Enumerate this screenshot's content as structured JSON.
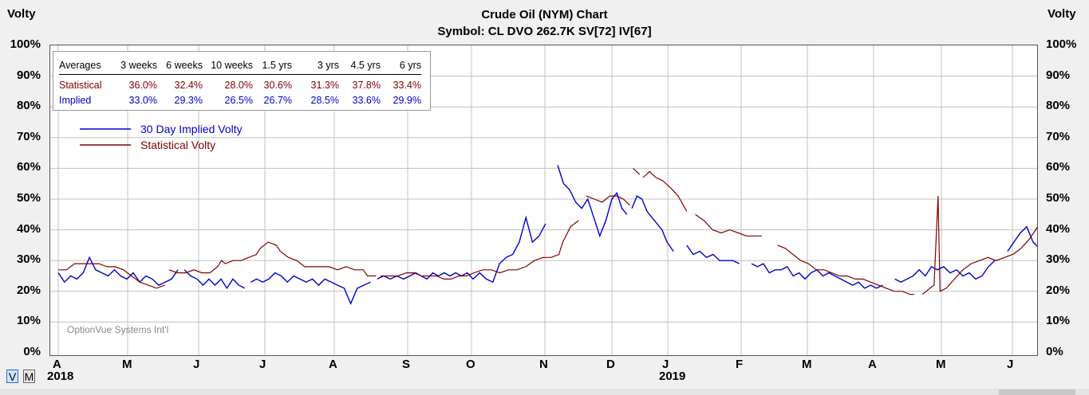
{
  "header": {
    "left_label": "Volty",
    "right_label": "Volty",
    "title": "Crude Oil (NYM) Chart",
    "subtitle": "Symbol: CL  DVO 262.7K  SV[72]  IV[67]"
  },
  "averages": {
    "headers": [
      "Averages",
      "3 weeks",
      "6 weeks",
      "10 weeks",
      "1.5 yrs",
      "3 yrs",
      "4.5 yrs",
      "6 yrs"
    ],
    "rows": [
      {
        "label": "Statistical",
        "values": [
          "36.0%",
          "32.4%",
          "28.0%",
          "30.6%",
          "31.3%",
          "37.8%",
          "33.4%"
        ],
        "color": "#800000"
      },
      {
        "label": "Implied",
        "values": [
          "33.0%",
          "29.3%",
          "26.5%",
          "26.7%",
          "28.5%",
          "33.6%",
          "29.9%"
        ],
        "color": "#0000cc"
      }
    ]
  },
  "watermark": "OptionVue Systems Int'l",
  "controls": {
    "v_label": "V",
    "m_label": "M"
  },
  "chart_data": {
    "type": "line",
    "title": "Crude Oil (NYM) Chart",
    "subtitle": "Symbol: CL  DVO 262.7K  SV[72]  IV[67]",
    "ylabel": "Volty",
    "ylim": [
      0,
      100
    ],
    "y_ticks": [
      "0%",
      "10%",
      "20%",
      "30%",
      "40%",
      "50%",
      "60%",
      "70%",
      "80%",
      "90%",
      "100%"
    ],
    "x_ticks": [
      "A",
      "M",
      "J",
      "J",
      "A",
      "S",
      "O",
      "N",
      "D",
      "J",
      "F",
      "M",
      "A",
      "M",
      "J"
    ],
    "x_years": [
      "2018",
      "2019"
    ],
    "grid": true,
    "legend_position": "top-left",
    "colors": {
      "implied": "#0000cc",
      "statistical": "#800000"
    },
    "series": [
      {
        "name": "30 Day Implied Volty",
        "color": "#0000cc",
        "points": [
          [
            0.0,
            26
          ],
          [
            0.1,
            23
          ],
          [
            0.2,
            25
          ],
          [
            0.3,
            24
          ],
          [
            0.4,
            26
          ],
          [
            0.5,
            31
          ],
          [
            0.6,
            27
          ],
          [
            0.7,
            26
          ],
          [
            0.8,
            25
          ],
          [
            0.9,
            27
          ],
          [
            1.0,
            25
          ],
          [
            1.1,
            24
          ],
          [
            1.2,
            26
          ],
          [
            1.3,
            23
          ],
          [
            1.4,
            25
          ],
          [
            1.5,
            24
          ],
          [
            1.6,
            22
          ],
          [
            1.7,
            23
          ],
          [
            1.8,
            24
          ],
          [
            1.9,
            27
          ],
          null,
          [
            2.0,
            27
          ],
          [
            2.1,
            25
          ],
          [
            2.2,
            24
          ],
          [
            2.3,
            22
          ],
          [
            2.4,
            24
          ],
          [
            2.5,
            22
          ],
          [
            2.6,
            24
          ],
          [
            2.7,
            21
          ],
          [
            2.8,
            24
          ],
          [
            2.9,
            22
          ],
          [
            3.0,
            21
          ],
          null,
          [
            3.1,
            23
          ],
          [
            3.2,
            24
          ],
          [
            3.3,
            23
          ],
          [
            3.4,
            24
          ],
          [
            3.5,
            26
          ],
          [
            3.6,
            25
          ],
          [
            3.7,
            23
          ],
          [
            3.8,
            25
          ],
          [
            3.9,
            24
          ],
          [
            4.0,
            23
          ],
          [
            4.1,
            24
          ],
          [
            4.2,
            22
          ],
          [
            4.3,
            24
          ],
          [
            4.4,
            23
          ],
          [
            4.5,
            22
          ],
          [
            4.6,
            21
          ],
          [
            4.7,
            16
          ],
          [
            4.8,
            21
          ],
          [
            4.9,
            22
          ],
          [
            5.0,
            23
          ],
          null,
          [
            5.1,
            24
          ],
          [
            5.2,
            25
          ],
          [
            5.3,
            24
          ],
          [
            5.4,
            25
          ],
          [
            5.5,
            24
          ],
          [
            5.6,
            25
          ],
          [
            5.7,
            26
          ],
          [
            5.8,
            25
          ],
          [
            5.9,
            24
          ],
          [
            6.0,
            26
          ],
          [
            6.1,
            25
          ],
          [
            6.2,
            26
          ],
          [
            6.3,
            25
          ],
          [
            6.4,
            26
          ],
          [
            6.5,
            25
          ],
          [
            6.6,
            26
          ],
          [
            6.7,
            24
          ],
          [
            6.8,
            26
          ],
          [
            6.9,
            24
          ],
          [
            7.0,
            23
          ],
          [
            7.1,
            29
          ],
          [
            7.2,
            31
          ],
          [
            7.3,
            32
          ],
          [
            7.4,
            36
          ],
          [
            7.5,
            44
          ],
          [
            7.6,
            36
          ],
          [
            7.7,
            38
          ],
          [
            7.8,
            42
          ],
          null,
          [
            8.0,
            61
          ],
          [
            8.1,
            55
          ],
          [
            8.2,
            53
          ],
          [
            8.3,
            49
          ],
          [
            8.4,
            47
          ],
          [
            8.5,
            50
          ],
          [
            8.6,
            44
          ],
          [
            8.7,
            38
          ],
          [
            8.8,
            43
          ],
          [
            8.9,
            50
          ],
          [
            9.0,
            52
          ],
          [
            9.1,
            47
          ],
          [
            9.2,
            45
          ],
          null,
          [
            9.3,
            47
          ],
          [
            9.4,
            51
          ],
          [
            9.5,
            50
          ],
          [
            9.6,
            46
          ],
          [
            9.7,
            44
          ],
          [
            9.8,
            42
          ],
          [
            9.9,
            40
          ],
          [
            10.0,
            36
          ],
          [
            10.1,
            33
          ],
          null,
          [
            10.3,
            35
          ],
          [
            10.4,
            32
          ],
          [
            10.5,
            33
          ],
          [
            10.6,
            31
          ],
          [
            10.7,
            32
          ],
          [
            10.8,
            30
          ],
          [
            10.9,
            30
          ],
          [
            11.0,
            30
          ],
          [
            11.1,
            29
          ],
          null,
          [
            11.3,
            29
          ],
          [
            11.4,
            28
          ],
          [
            11.5,
            29
          ],
          [
            11.6,
            26
          ],
          [
            11.7,
            27
          ],
          [
            11.8,
            27
          ],
          [
            11.9,
            28
          ],
          [
            12.0,
            25
          ],
          [
            12.1,
            26
          ],
          [
            12.2,
            24
          ],
          [
            12.3,
            26
          ],
          [
            12.4,
            27
          ],
          [
            12.5,
            25
          ],
          [
            12.6,
            26
          ],
          [
            12.7,
            25
          ],
          [
            12.8,
            24
          ],
          [
            12.9,
            23
          ],
          [
            13.0,
            22
          ],
          [
            13.1,
            23
          ],
          [
            13.2,
            21
          ],
          [
            13.3,
            22
          ],
          [
            13.4,
            21
          ],
          [
            13.5,
            22
          ],
          null,
          [
            13.7,
            24
          ],
          [
            13.8,
            23
          ],
          [
            13.9,
            24
          ],
          [
            14.0,
            25
          ],
          [
            14.1,
            27
          ],
          [
            14.2,
            25
          ],
          [
            14.3,
            28
          ],
          [
            14.4,
            27
          ],
          [
            14.5,
            28
          ],
          [
            14.6,
            26
          ],
          [
            14.7,
            27
          ],
          [
            14.8,
            25
          ],
          [
            14.9,
            26
          ],
          [
            15.0,
            24
          ],
          [
            15.1,
            25
          ],
          [
            15.2,
            28
          ],
          [
            15.3,
            30
          ],
          null,
          [
            15.5,
            33
          ],
          [
            15.6,
            36
          ],
          [
            15.7,
            39
          ],
          [
            15.8,
            41
          ],
          [
            15.9,
            36
          ],
          [
            16.0,
            34
          ]
        ]
      },
      {
        "name": "Statistical Volty",
        "color": "#800000",
        "points": [
          [
            0.0,
            27
          ],
          [
            0.2,
            27
          ],
          [
            0.4,
            29
          ],
          [
            0.6,
            29
          ],
          [
            0.8,
            29
          ],
          [
            1.0,
            29
          ],
          [
            1.2,
            28
          ],
          [
            1.4,
            28
          ],
          [
            1.6,
            27
          ],
          [
            1.8,
            25
          ],
          [
            2.0,
            23
          ],
          [
            2.2,
            22
          ],
          [
            2.4,
            21
          ],
          [
            2.6,
            22
          ],
          null,
          [
            2.7,
            27
          ],
          [
            2.9,
            26
          ],
          [
            3.1,
            26
          ],
          [
            3.3,
            27
          ],
          [
            3.5,
            26
          ],
          [
            3.7,
            26
          ],
          [
            3.9,
            28
          ],
          [
            4.0,
            30
          ],
          [
            4.1,
            29
          ],
          [
            4.3,
            30
          ],
          [
            4.5,
            30
          ],
          [
            4.7,
            31
          ],
          [
            4.9,
            32
          ],
          [
            5.0,
            34
          ],
          [
            5.2,
            36
          ],
          [
            5.4,
            35
          ],
          [
            5.5,
            33
          ],
          [
            5.7,
            31
          ],
          [
            5.9,
            30
          ],
          [
            6.1,
            28
          ],
          [
            6.3,
            28
          ],
          [
            6.5,
            28
          ],
          [
            6.7,
            28
          ],
          [
            6.9,
            27
          ],
          [
            7.1,
            28
          ],
          [
            7.3,
            27
          ],
          [
            7.5,
            27
          ],
          [
            7.6,
            25
          ],
          [
            7.8,
            25
          ],
          null,
          [
            7.9,
            25
          ],
          [
            8.1,
            25
          ],
          [
            8.3,
            25
          ],
          [
            8.5,
            26
          ],
          [
            8.7,
            26
          ],
          [
            8.9,
            25
          ],
          [
            9.1,
            25
          ],
          [
            9.3,
            25
          ],
          [
            9.5,
            24
          ],
          [
            9.7,
            24
          ],
          [
            9.9,
            25
          ],
          [
            10.1,
            25
          ],
          [
            10.3,
            26
          ],
          [
            10.5,
            27
          ],
          [
            10.7,
            27
          ],
          [
            10.9,
            26
          ],
          [
            11.1,
            27
          ],
          [
            11.3,
            27
          ],
          [
            11.5,
            28
          ],
          [
            11.7,
            30
          ],
          [
            11.9,
            31
          ],
          [
            12.1,
            31
          ],
          [
            12.3,
            32
          ],
          [
            12.4,
            36
          ],
          [
            12.6,
            41
          ],
          [
            12.8,
            43
          ],
          null,
          [
            13.0,
            51
          ],
          [
            13.2,
            50
          ],
          [
            13.4,
            49
          ],
          [
            13.6,
            51
          ],
          [
            13.8,
            51
          ],
          [
            14.0,
            50
          ],
          [
            14.2,
            48
          ],
          null,
          [
            14.3,
            60
          ],
          [
            14.5,
            58
          ],
          null,
          [
            14.6,
            57
          ],
          [
            14.8,
            59
          ],
          [
            15.0,
            57
          ],
          [
            15.2,
            56
          ],
          [
            15.4,
            54
          ],
          [
            15.6,
            51
          ],
          [
            15.8,
            46
          ],
          null,
          [
            16.0,
            45
          ],
          [
            16.2,
            43
          ],
          [
            16.4,
            40
          ],
          [
            16.6,
            39
          ],
          [
            16.8,
            40
          ],
          [
            17.0,
            39
          ],
          [
            17.2,
            38
          ],
          [
            17.4,
            38
          ],
          [
            17.6,
            38
          ],
          null,
          [
            18.0,
            35
          ],
          [
            18.2,
            34
          ],
          [
            18.4,
            32
          ],
          [
            18.6,
            30
          ],
          [
            18.8,
            29
          ],
          [
            19.0,
            27
          ],
          [
            19.2,
            27
          ],
          [
            19.4,
            26
          ],
          [
            19.6,
            25
          ],
          [
            19.8,
            25
          ],
          [
            20.0,
            24
          ],
          [
            20.2,
            24
          ],
          [
            20.4,
            23
          ],
          [
            20.6,
            22
          ],
          [
            20.8,
            21
          ],
          [
            21.0,
            20
          ],
          [
            21.2,
            20
          ],
          [
            21.4,
            19
          ],
          [
            21.5,
            19
          ],
          null,
          [
            21.7,
            19
          ],
          [
            21.8,
            20
          ],
          [
            21.9,
            21
          ],
          [
            22.0,
            22
          ],
          [
            22.1,
            51
          ],
          [
            22.15,
            20
          ],
          [
            22.3,
            21
          ],
          [
            22.5,
            24
          ],
          [
            22.7,
            27
          ],
          [
            22.9,
            29
          ],
          [
            23.1,
            30
          ],
          [
            23.3,
            31
          ],
          [
            23.5,
            30
          ],
          [
            23.7,
            31
          ],
          [
            23.9,
            32
          ],
          [
            24.1,
            34
          ],
          [
            24.3,
            37
          ],
          [
            24.5,
            41
          ],
          [
            24.7,
            42
          ],
          [
            24.8,
            37
          ],
          [
            24.9,
            43
          ]
        ]
      }
    ]
  }
}
